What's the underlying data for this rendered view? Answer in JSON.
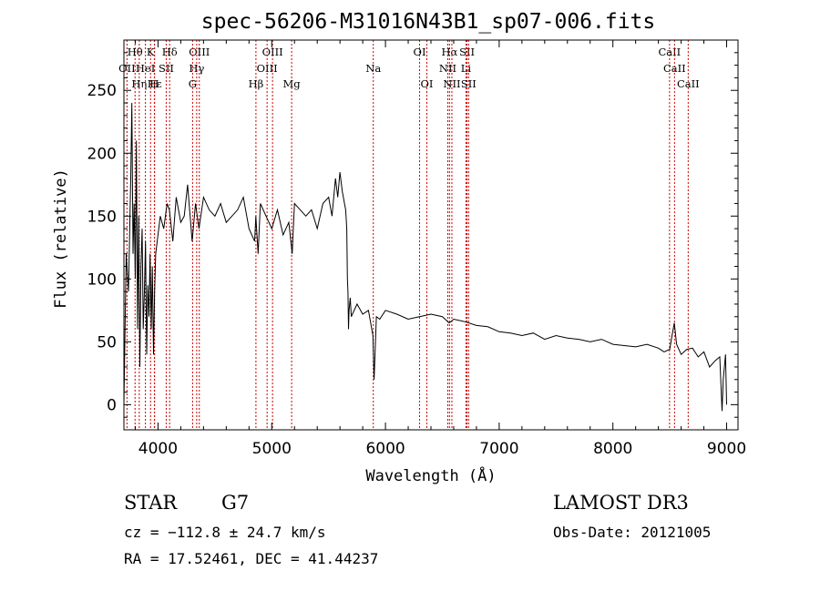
{
  "chart_data": {
    "type": "line",
    "title": "spec-56206-M31016N43B1_sp07-006.fits",
    "xlabel": "Wavelength (Å)",
    "ylabel": "Flux (relative)",
    "xlim": [
      3700,
      9100
    ],
    "ylim": [
      -20,
      290
    ],
    "xticks": [
      4000,
      5000,
      6000,
      7000,
      8000,
      9000
    ],
    "xtick_labels": [
      "4000",
      "5000",
      "6000",
      "7000",
      "8000",
      "9000"
    ],
    "yticks": [
      0,
      50,
      100,
      150,
      200,
      250
    ],
    "ytick_labels": [
      "0",
      "50",
      "100",
      "150",
      "200",
      "250"
    ],
    "series": [
      {
        "name": "flux",
        "x": [
          3700,
          3720,
          3740,
          3760,
          3770,
          3780,
          3790,
          3800,
          3810,
          3820,
          3830,
          3840,
          3850,
          3860,
          3870,
          3880,
          3890,
          3900,
          3910,
          3920,
          3930,
          3940,
          3950,
          3960,
          3970,
          3980,
          4000,
          4020,
          4050,
          4080,
          4100,
          4130,
          4160,
          4200,
          4230,
          4260,
          4300,
          4330,
          4360,
          4400,
          4450,
          4500,
          4550,
          4600,
          4650,
          4700,
          4750,
          4800,
          4850,
          4860,
          4880,
          4900,
          4950,
          5000,
          5050,
          5100,
          5150,
          5180,
          5200,
          5250,
          5300,
          5350,
          5400,
          5450,
          5500,
          5530,
          5560,
          5580,
          5600,
          5620,
          5640,
          5650,
          5660,
          5665,
          5670,
          5675,
          5680,
          5690,
          5700,
          5750,
          5800,
          5850,
          5890,
          5900,
          5920,
          5950,
          6000,
          6100,
          6200,
          6300,
          6400,
          6500,
          6560,
          6600,
          6700,
          6800,
          6900,
          7000,
          7100,
          7200,
          7300,
          7400,
          7500,
          7600,
          7700,
          7800,
          7900,
          8000,
          8100,
          8200,
          8300,
          8400,
          8450,
          8500,
          8520,
          8540,
          8560,
          8600,
          8650,
          8700,
          8750,
          8800,
          8850,
          8900,
          8940,
          8960,
          8970,
          8990,
          9000
        ],
        "y": [
          0,
          120,
          90,
          180,
          240,
          120,
          160,
          100,
          210,
          60,
          150,
          30,
          110,
          140,
          60,
          90,
          130,
          40,
          95,
          70,
          120,
          60,
          110,
          40,
          90,
          120,
          135,
          150,
          140,
          160,
          155,
          130,
          165,
          145,
          150,
          175,
          130,
          160,
          140,
          165,
          155,
          150,
          160,
          145,
          150,
          155,
          165,
          140,
          130,
          150,
          120,
          160,
          150,
          140,
          155,
          135,
          145,
          120,
          160,
          155,
          150,
          155,
          140,
          160,
          165,
          150,
          180,
          165,
          185,
          170,
          160,
          155,
          140,
          100,
          90,
          60,
          75,
          85,
          70,
          80,
          72,
          75,
          55,
          20,
          70,
          68,
          75,
          72,
          68,
          70,
          72,
          70,
          65,
          68,
          66,
          63,
          62,
          58,
          57,
          55,
          57,
          52,
          55,
          53,
          52,
          50,
          52,
          48,
          47,
          46,
          48,
          45,
          42,
          44,
          55,
          65,
          48,
          40,
          44,
          45,
          38,
          42,
          30,
          35,
          38,
          -5,
          20,
          40,
          0
        ]
      }
    ],
    "spectral_lines": [
      {
        "name": "Hθ",
        "wavelength": 3798,
        "row": 1
      },
      {
        "name": "OII",
        "wavelength": 3727,
        "row": 2
      },
      {
        "name": "K",
        "wavelength": 3934,
        "row": 1
      },
      {
        "name": "Hε",
        "wavelength": 3970,
        "row": 3
      },
      {
        "name": "H",
        "wavelength": 3968,
        "row": 3
      },
      {
        "name": "Hη",
        "wavelength": 3835,
        "row": 3
      },
      {
        "name": "HeI",
        "wavelength": 3889,
        "row": 2
      },
      {
        "name": "SII",
        "wavelength": 4072,
        "row": 2
      },
      {
        "name": "Hδ",
        "wavelength": 4102,
        "row": 1
      },
      {
        "name": "OIII",
        "wavelength": 4363,
        "row": 1
      },
      {
        "name": "Hγ",
        "wavelength": 4340,
        "row": 2
      },
      {
        "name": "G",
        "wavelength": 4304,
        "row": 3
      },
      {
        "name": "Hβ",
        "wavelength": 4861,
        "row": 3
      },
      {
        "name": "OIII",
        "wavelength": 5007,
        "row": 1
      },
      {
        "name": "OIII",
        "wavelength": 4959,
        "row": 2
      },
      {
        "name": "Mg",
        "wavelength": 5175,
        "row": 3
      },
      {
        "name": "Na",
        "wavelength": 5893,
        "row": 2
      },
      {
        "name": "OI",
        "wavelength": 6300,
        "row": 1
      },
      {
        "name": "OI",
        "wavelength": 6364,
        "row": 3
      },
      {
        "name": "Hα",
        "wavelength": 6563,
        "row": 1
      },
      {
        "name": "NII",
        "wavelength": 6548,
        "row": 2
      },
      {
        "name": "NII",
        "wavelength": 6584,
        "row": 3
      },
      {
        "name": "SII",
        "wavelength": 6717,
        "row": 1
      },
      {
        "name": "Li",
        "wavelength": 6708,
        "row": 2
      },
      {
        "name": "SII",
        "wavelength": 6731,
        "row": 3
      },
      {
        "name": "CaII",
        "wavelength": 8498,
        "row": 1
      },
      {
        "name": "CaII",
        "wavelength": 8542,
        "row": 2
      },
      {
        "name": "CaII",
        "wavelength": 8662,
        "row": 3
      }
    ]
  },
  "info": {
    "class": "STAR",
    "subclass": "G7",
    "survey": "LAMOST DR3",
    "cz": "cz = −112.8 ± 24.7 km/s",
    "obs_date": "Obs-Date: 20121005",
    "radec": "RA =  17.52461, DEC =  41.44237"
  },
  "colors": {
    "line_marker": "#cc0000",
    "spectrum": "#000000"
  }
}
